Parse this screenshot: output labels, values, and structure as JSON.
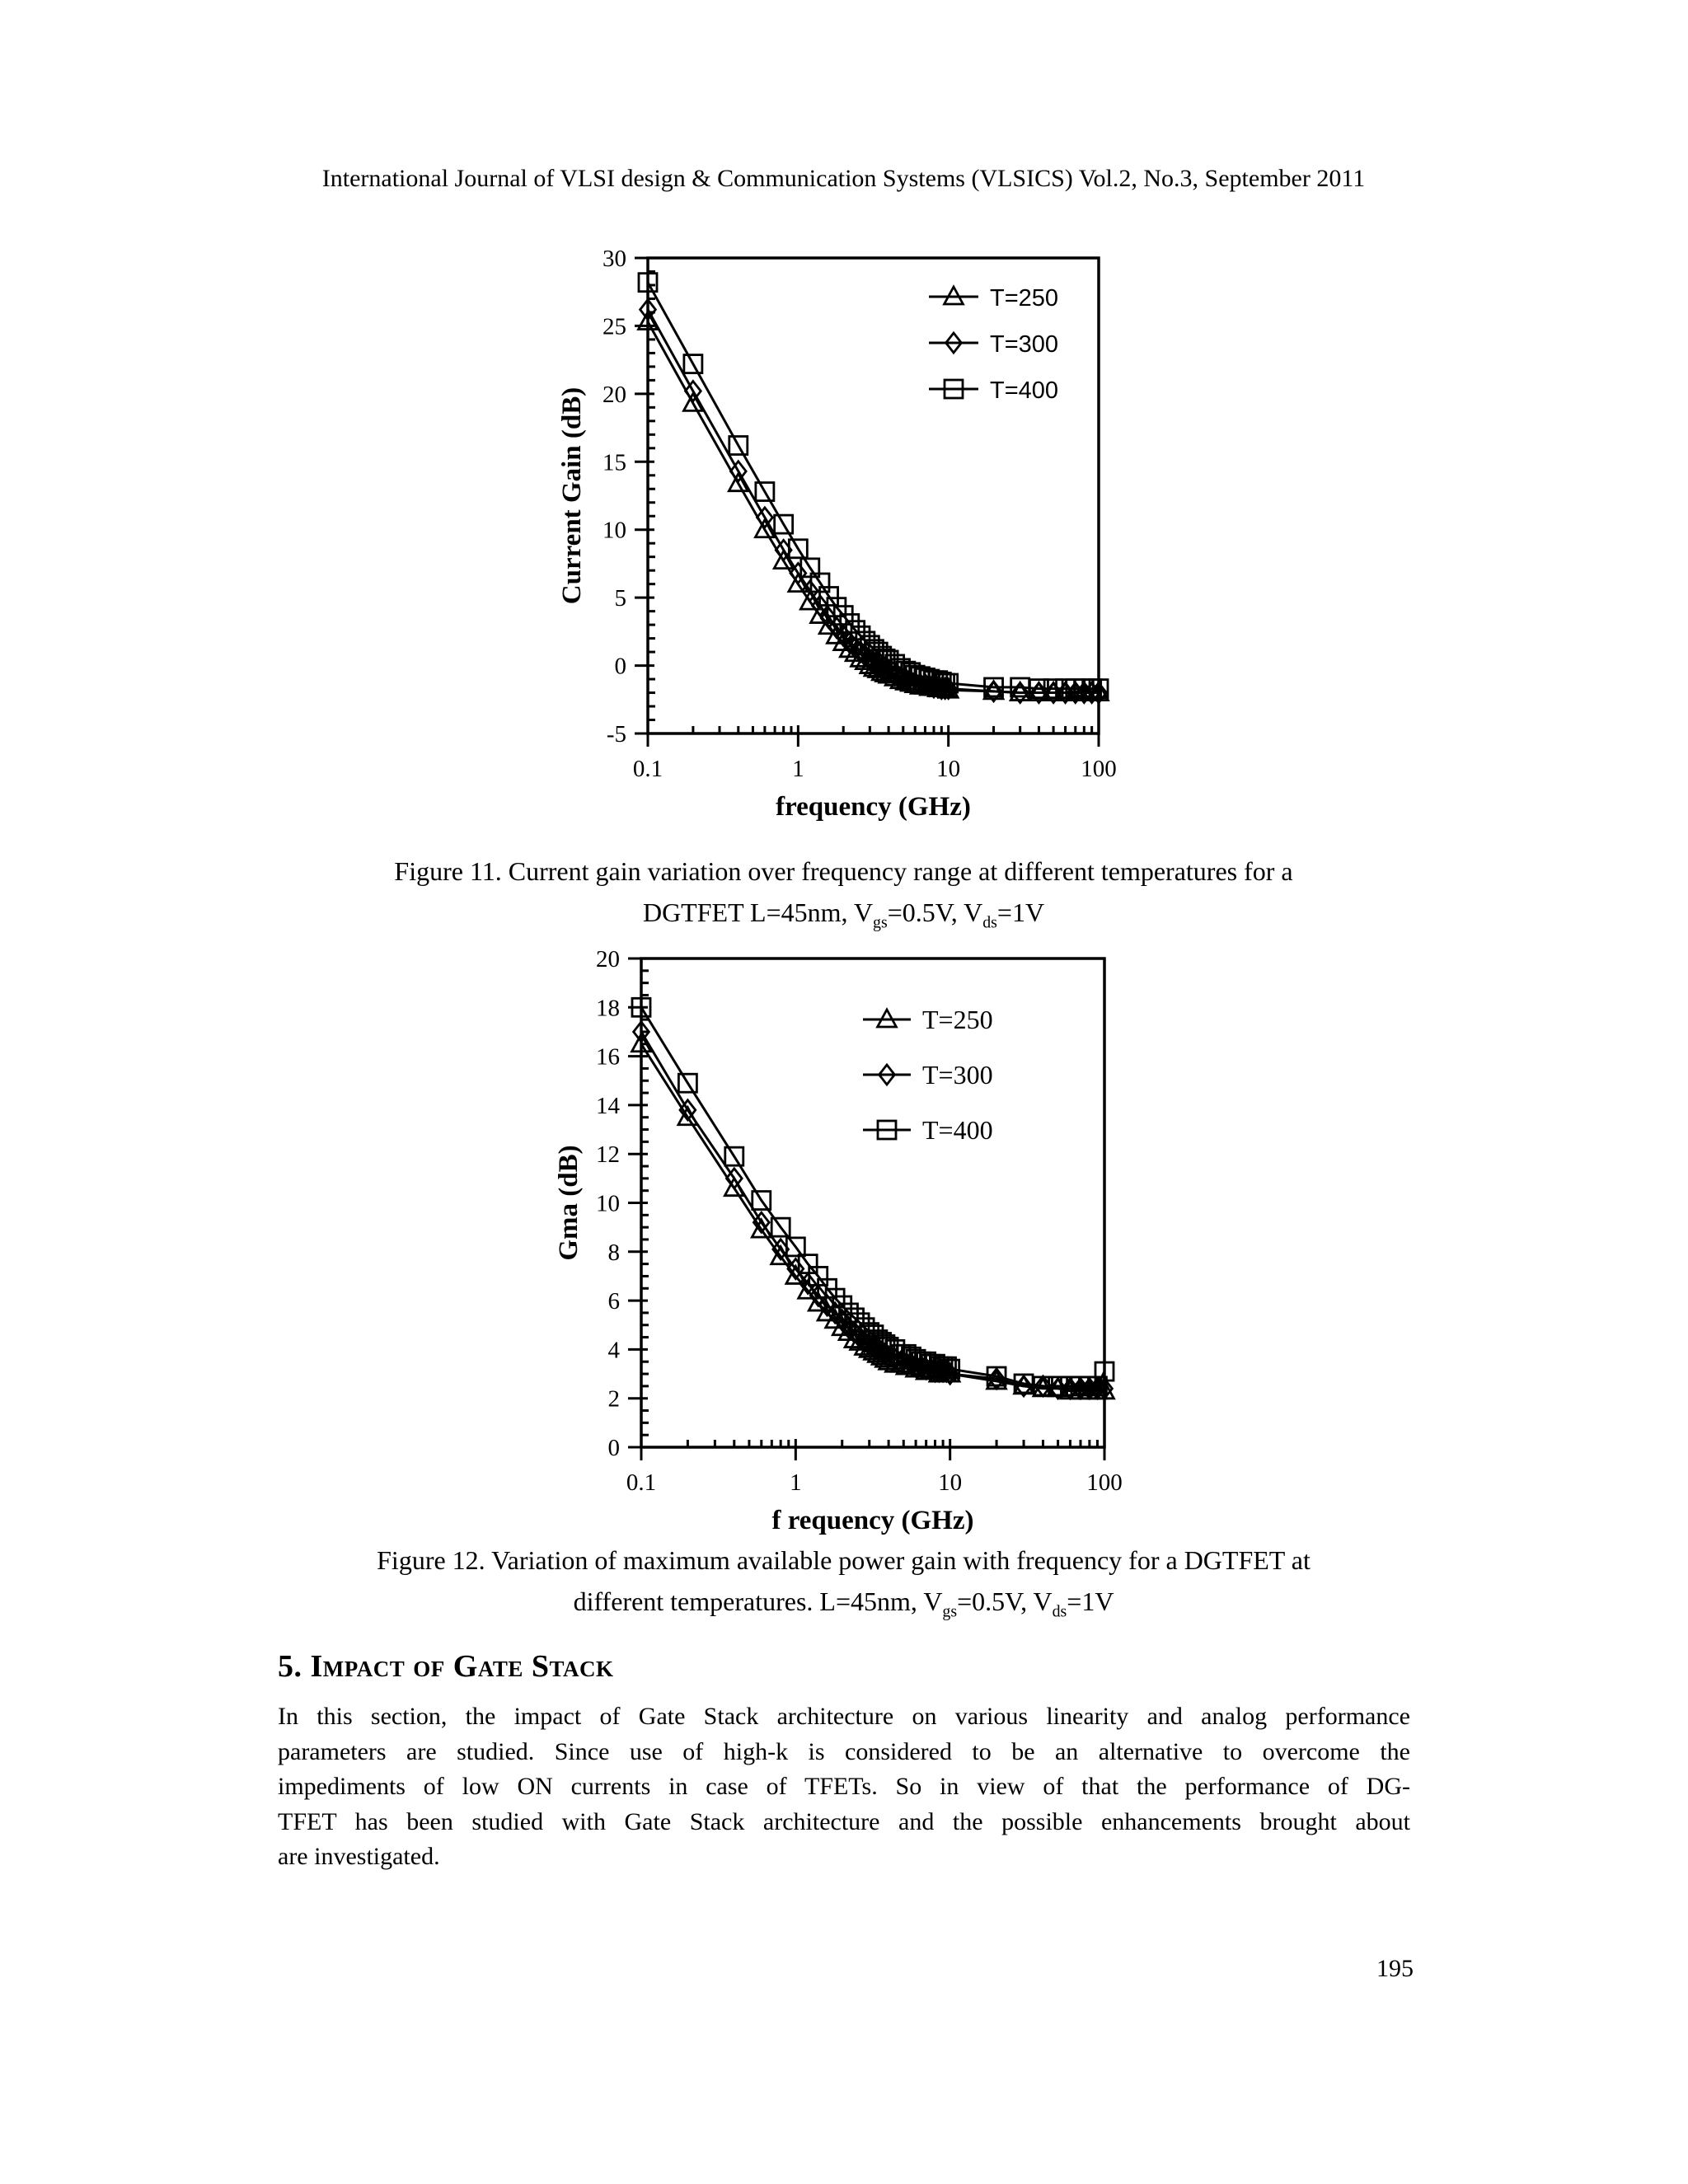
{
  "header": {
    "text": "International Journal of VLSI design & Communication Systems (VLSICS) Vol.2, No.3, September 2011"
  },
  "figures": [
    {
      "caption_line1": "Figure 11. Current gain variation over frequency range at different temperatures for a",
      "caption2_prefix": "DGTFET L=45nm, V",
      "caption2_sub1": "gs",
      "caption2_mid": "=0.5V, V",
      "caption2_sub2": "ds",
      "caption2_suffix": "=1V"
    },
    {
      "caption_line1": "Figure 12. Variation of maximum available power gain with frequency for a DGTFET at",
      "caption2_prefix": "different temperatures. L=45nm, V",
      "caption2_sub1": "gs",
      "caption2_mid": "=0.5V, V",
      "caption2_sub2": "ds",
      "caption2_suffix": "=1V"
    }
  ],
  "section": {
    "heading": "5. Impact of Gate Stack"
  },
  "body": {
    "lines": [
      "In this section, the impact of Gate Stack architecture on various linearity and analog performance",
      "parameters are studied. Since use of high-k is considered to be an alternative to overcome the",
      "impediments of low ON currents in case of TFETs. So in view of that the performance of DG-",
      "TFET has been studied with Gate Stack architecture and the possible enhancements brought about",
      "are investigated."
    ]
  },
  "page_number": "195",
  "colors": {
    "ink": "#000000",
    "paper": "#ffffff"
  },
  "chart_data": [
    {
      "type": "line",
      "title": "",
      "xlabel": "frequency (GHz)",
      "ylabel": "Current Gain (dB)",
      "x_scale": "log",
      "xlim": [
        0.1,
        100
      ],
      "ylim": [
        -5,
        30
      ],
      "y_major_step": 5,
      "y_minor_step": 1,
      "x_major_ticks": [
        0.1,
        1,
        10,
        100
      ],
      "x_tick_labels": [
        "0.1",
        "1",
        "10",
        "100"
      ],
      "grid": false,
      "legend_position": "upper-right-inside",
      "legend_font": "sans",
      "x": [
        0.1,
        0.2,
        0.4,
        0.6,
        0.8,
        1,
        1.2,
        1.4,
        1.6,
        1.8,
        2,
        2.2,
        2.4,
        2.6,
        2.8,
        3,
        3.2,
        3.4,
        3.6,
        3.8,
        4,
        4.4,
        4.8,
        5.2,
        5.6,
        6,
        6.5,
        7,
        7.5,
        8,
        8.5,
        9,
        9.5,
        10,
        20,
        30,
        40,
        50,
        60,
        70,
        80,
        90,
        100
      ],
      "series": [
        {
          "name": "T=250",
          "marker": "triangle",
          "values": [
            25.3,
            19.3,
            13.4,
            10.0,
            7.7,
            6.0,
            4.7,
            3.7,
            2.9,
            2.2,
            1.7,
            1.2,
            0.9,
            0.5,
            0.3,
            0.0,
            -0.2,
            -0.3,
            -0.5,
            -0.6,
            -0.7,
            -0.9,
            -1.1,
            -1.2,
            -1.3,
            -1.4,
            -1.5,
            -1.5,
            -1.6,
            -1.6,
            -1.7,
            -1.7,
            -1.7,
            -1.8,
            -1.9,
            -2.0,
            -2.0,
            -2.0,
            -2.0,
            -2.0,
            -2.0,
            -2.0,
            -2.0
          ]
        },
        {
          "name": "T=300",
          "marker": "diamond",
          "values": [
            26.2,
            20.2,
            14.3,
            10.9,
            8.5,
            6.8,
            5.5,
            4.4,
            3.5,
            2.8,
            2.2,
            1.7,
            1.3,
            1.0,
            0.7,
            0.4,
            0.2,
            0.0,
            -0.2,
            -0.4,
            -0.5,
            -0.7,
            -0.9,
            -1.0,
            -1.2,
            -1.3,
            -1.4,
            -1.4,
            -1.5,
            -1.6,
            -1.6,
            -1.7,
            -1.7,
            -1.7,
            -1.9,
            -2.0,
            -2.0,
            -2.0,
            -2.0,
            -2.0,
            -2.0,
            -2.0,
            -2.0
          ]
        },
        {
          "name": "T=400",
          "marker": "square",
          "values": [
            28.2,
            22.2,
            16.2,
            12.8,
            10.4,
            8.6,
            7.2,
            6.1,
            5.1,
            4.3,
            3.7,
            3.1,
            2.6,
            2.2,
            1.8,
            1.5,
            1.2,
            1.0,
            0.7,
            0.5,
            0.4,
            0.1,
            -0.2,
            -0.4,
            -0.5,
            -0.7,
            -0.8,
            -0.9,
            -1.0,
            -1.1,
            -1.1,
            -1.2,
            -1.3,
            -1.3,
            -1.6,
            -1.6,
            -1.7,
            -1.7,
            -1.7,
            -1.7,
            -1.7,
            -1.7,
            -1.7
          ]
        }
      ]
    },
    {
      "type": "line",
      "title": "",
      "xlabel": "f requency (GHz)",
      "ylabel": "Gma (dB)",
      "x_scale": "log",
      "xlim": [
        0.1,
        100
      ],
      "ylim": [
        0,
        20
      ],
      "y_major_step": 2,
      "y_minor_step": 0.5,
      "x_major_ticks": [
        0.1,
        1,
        10,
        100
      ],
      "x_tick_labels": [
        "0.1",
        "1",
        "10",
        "100"
      ],
      "grid": false,
      "legend_position": "upper-right-inside",
      "legend_font": "serif",
      "x": [
        0.1,
        0.2,
        0.4,
        0.6,
        0.8,
        1,
        1.2,
        1.4,
        1.6,
        1.8,
        2,
        2.2,
        2.4,
        2.6,
        2.8,
        3,
        3.2,
        3.4,
        3.6,
        3.8,
        4,
        4.4,
        4.8,
        5.2,
        5.6,
        6,
        6.5,
        7,
        7.5,
        8,
        8.5,
        9,
        9.5,
        10,
        20,
        30,
        40,
        50,
        60,
        70,
        80,
        90,
        100
      ],
      "series": [
        {
          "name": "T=250",
          "marker": "triangle",
          "values": [
            16.5,
            13.5,
            10.6,
            8.9,
            7.8,
            7.0,
            6.4,
            5.9,
            5.5,
            5.2,
            4.9,
            4.7,
            4.4,
            4.3,
            4.1,
            4.0,
            3.9,
            3.8,
            3.7,
            3.6,
            3.5,
            3.4,
            3.4,
            3.3,
            3.3,
            3.2,
            3.2,
            3.1,
            3.1,
            3.1,
            3.0,
            3.0,
            3.0,
            3.0,
            2.7,
            2.5,
            2.4,
            2.4,
            2.3,
            2.3,
            2.3,
            2.3,
            2.3
          ]
        },
        {
          "name": "T=300",
          "marker": "diamond",
          "values": [
            17.0,
            13.8,
            11.0,
            9.2,
            8.1,
            7.3,
            6.7,
            6.2,
            5.8,
            5.5,
            5.2,
            4.9,
            4.7,
            4.5,
            4.3,
            4.2,
            4.1,
            4.0,
            3.9,
            3.8,
            3.7,
            3.6,
            3.5,
            3.4,
            3.4,
            3.3,
            3.3,
            3.2,
            3.2,
            3.1,
            3.1,
            3.1,
            3.1,
            3.0,
            2.8,
            2.5,
            2.5,
            2.4,
            2.4,
            2.4,
            2.4,
            2.4,
            2.4
          ]
        },
        {
          "name": "T=400",
          "marker": "square",
          "values": [
            18.0,
            14.9,
            11.9,
            10.1,
            9.0,
            8.2,
            7.5,
            7.0,
            6.5,
            6.1,
            5.8,
            5.5,
            5.3,
            5.1,
            4.9,
            4.7,
            4.6,
            4.4,
            4.3,
            4.2,
            4.1,
            4.0,
            3.8,
            3.8,
            3.7,
            3.6,
            3.5,
            3.5,
            3.4,
            3.4,
            3.3,
            3.3,
            3.3,
            3.2,
            2.9,
            2.6,
            2.5,
            2.5,
            2.5,
            2.5,
            2.5,
            2.5,
            3.1
          ]
        }
      ]
    }
  ]
}
